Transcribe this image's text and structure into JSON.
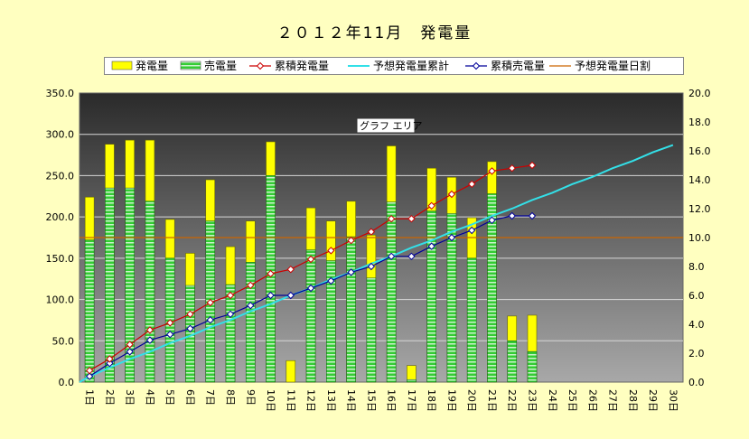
{
  "chart_data": {
    "type": "bar",
    "title": "２０１２年11月　発電量",
    "plot_area_label": "グラフ エリア",
    "categories": [
      "1日",
      "2日",
      "3日",
      "4日",
      "5日",
      "6日",
      "7日",
      "8日",
      "9日",
      "10日",
      "11日",
      "12日",
      "13日",
      "14日",
      "15日",
      "16日",
      "17日",
      "18日",
      "19日",
      "20日",
      "21日",
      "22日",
      "23日",
      "24日",
      "25日",
      "26日",
      "27日",
      "28日",
      "29日",
      "30日"
    ],
    "ylim_left": [
      0,
      350
    ],
    "yticks_left": [
      "0.0",
      "50.0",
      "100.0",
      "150.0",
      "200.0",
      "250.0",
      "300.0",
      "350.0"
    ],
    "ylim_right": [
      0,
      20
    ],
    "yticks_right": [
      "0.0",
      "2.0",
      "4.0",
      "6.0",
      "8.0",
      "10.0",
      "12.0",
      "14.0",
      "16.0",
      "18.0",
      "20.0"
    ],
    "grid": true,
    "legend_position": "top",
    "series": [
      {
        "name": "発電量",
        "axis": "left",
        "kind": "bar",
        "color": "#ffff00",
        "values": [
          224,
          288,
          293,
          293,
          197,
          156,
          245,
          164,
          195,
          291,
          26,
          211,
          195,
          219,
          178,
          286,
          20,
          259,
          248,
          199,
          267,
          80,
          81,
          null,
          null,
          null,
          null,
          null,
          null,
          null
        ]
      },
      {
        "name": "売電量",
        "axis": "left",
        "kind": "bar",
        "color": "#33cc33",
        "values": [
          172,
          235,
          235,
          219,
          150,
          117,
          195,
          118,
          145,
          250,
          0,
          160,
          147,
          176,
          126,
          218,
          3,
          207,
          204,
          150,
          228,
          50,
          37,
          null,
          null,
          null,
          null,
          null,
          null,
          null
        ]
      },
      {
        "name": "累積発電量",
        "axis": "right",
        "kind": "line",
        "color": "#cc0000",
        "values": [
          0.8,
          1.6,
          2.6,
          3.6,
          4.1,
          4.7,
          5.5,
          6.0,
          6.7,
          7.5,
          7.8,
          8.5,
          9.1,
          9.8,
          10.4,
          11.3,
          11.3,
          12.2,
          13.0,
          13.7,
          14.6,
          14.8,
          15.0,
          null,
          null,
          null,
          null,
          null,
          null,
          null
        ]
      },
      {
        "name": "予想発電量累計",
        "axis": "right",
        "kind": "line",
        "color": "#33e0e8",
        "values": [
          0.4,
          1.0,
          1.6,
          2.1,
          2.7,
          3.2,
          3.8,
          4.3,
          4.9,
          5.4,
          6.0,
          6.5,
          7.1,
          7.6,
          8.2,
          8.7,
          9.3,
          9.8,
          10.4,
          10.9,
          11.5,
          12.0,
          12.6,
          13.1,
          13.7,
          14.2,
          14.8,
          15.3,
          15.9,
          16.4
        ]
      },
      {
        "name": "累積売電量",
        "axis": "right",
        "kind": "line",
        "color": "#000099",
        "values": [
          0.4,
          1.3,
          2.1,
          2.9,
          3.3,
          3.7,
          4.3,
          4.7,
          5.3,
          6.0,
          6.0,
          6.5,
          7.0,
          7.6,
          8.0,
          8.7,
          8.7,
          9.4,
          10.0,
          10.5,
          11.2,
          11.5,
          11.5,
          null,
          null,
          null,
          null,
          null,
          null,
          null
        ]
      },
      {
        "name": "予想発電量日割",
        "axis": "right",
        "kind": "line",
        "color": "#cc6600",
        "values": [
          10.0,
          10.0,
          10.0,
          10.0,
          10.0,
          10.0,
          10.0,
          10.0,
          10.0,
          10.0,
          10.0,
          10.0,
          10.0,
          10.0,
          10.0,
          10.0,
          10.0,
          10.0,
          10.0,
          10.0,
          10.0,
          10.0,
          10.0,
          10.0,
          10.0,
          10.0,
          10.0,
          10.0,
          10.0,
          10.0
        ]
      }
    ]
  }
}
